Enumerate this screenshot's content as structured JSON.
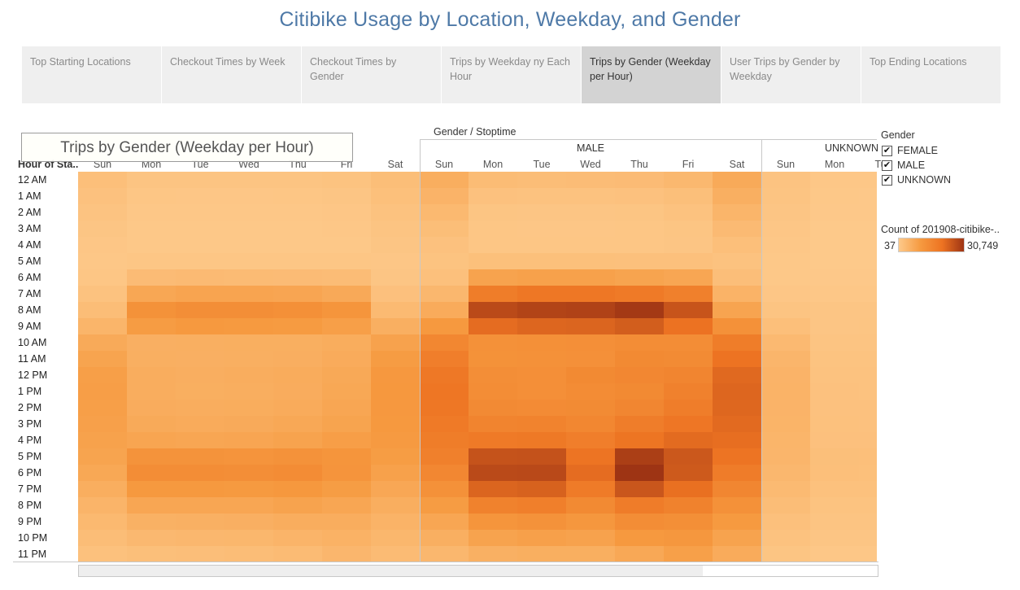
{
  "title": "Citibike Usage by Location, Weekday, and Gender",
  "tabs": [
    {
      "label": "Top Starting Locations",
      "active": false
    },
    {
      "label": "Checkout Times by Week",
      "active": false
    },
    {
      "label": "Checkout Times by Gender",
      "active": false
    },
    {
      "label": "Trips by Weekday ny Each Hour",
      "active": false
    },
    {
      "label": "Trips by Gender (Weekday per Hour)",
      "active": true
    },
    {
      "label": "User Trips by Gender by Weekday",
      "active": false
    },
    {
      "label": "Top Ending Locations",
      "active": false
    }
  ],
  "overlay_title": "Trips by Gender (Weekday per Hour)",
  "column_header": "Gender / Stoptime",
  "row_header": "Hour of Sta..",
  "gender_headers": [
    "",
    "MALE",
    "UNKNOWN"
  ],
  "days": [
    "Sun",
    "Mon",
    "Tue",
    "Wed",
    "Thu",
    "Fri",
    "Sat"
  ],
  "visible_unknown_days": [
    "Sun",
    "Mon",
    "Tue"
  ],
  "hours": [
    "12 AM",
    "1 AM",
    "2 AM",
    "3 AM",
    "4 AM",
    "5 AM",
    "6 AM",
    "7 AM",
    "8 AM",
    "9 AM",
    "10 AM",
    "11 AM",
    "12 PM",
    "1 PM",
    "2 PM",
    "3 PM",
    "4 PM",
    "5 PM",
    "6 PM",
    "7 PM",
    "8 PM",
    "9 PM",
    "10 PM",
    "11 PM"
  ],
  "legend": {
    "title": "Gender",
    "items": [
      {
        "label": "FEMALE",
        "checked": true
      },
      {
        "label": "MALE",
        "checked": true
      },
      {
        "label": "UNKNOWN",
        "checked": true
      }
    ],
    "checkmark": "✔",
    "color_title": "Count of 201908-citibike-..",
    "min_label": "37",
    "max_label": "30,749",
    "color_low": "#fdc98a",
    "color_high": "#9e3414"
  },
  "chart_data": {
    "type": "heatmap",
    "title": "Trips by Gender (Weekday per Hour)",
    "xlabel": "Gender / Stoptime",
    "ylabel": "Hour of Sta..",
    "value_range": [
      37,
      30749
    ],
    "series": [
      {
        "name": "FEMALE",
        "days": [
          "Sun",
          "Mon",
          "Tue",
          "Wed",
          "Thu",
          "Fri",
          "Sat"
        ],
        "values": [
          [
            2200,
            1200,
            1100,
            1100,
            1200,
            1400,
            2500
          ],
          [
            1700,
            700,
            600,
            600,
            700,
            900,
            2100
          ],
          [
            1300,
            400,
            400,
            400,
            400,
            600,
            1600
          ],
          [
            900,
            300,
            300,
            300,
            300,
            400,
            1200
          ],
          [
            600,
            300,
            300,
            300,
            300,
            300,
            800
          ],
          [
            500,
            700,
            700,
            700,
            700,
            700,
            600
          ],
          [
            700,
            3000,
            3200,
            3100,
            3000,
            2800,
            900
          ],
          [
            1500,
            7500,
            8000,
            8000,
            7800,
            7000,
            1900
          ],
          [
            2700,
            12500,
            13300,
            13500,
            13000,
            11500,
            3400
          ],
          [
            4500,
            9800,
            10500,
            10400,
            10100,
            9200,
            5700
          ],
          [
            6800,
            5600,
            5700,
            5800,
            5800,
            6200,
            8500
          ],
          [
            8200,
            5700,
            5600,
            5700,
            5900,
            6600,
            9800
          ],
          [
            9100,
            6100,
            5900,
            6100,
            6400,
            7100,
            10700
          ],
          [
            9300,
            6100,
            5800,
            6000,
            6300,
            7300,
            10800
          ],
          [
            9200,
            6300,
            6100,
            6200,
            6600,
            7600,
            10700
          ],
          [
            8900,
            6800,
            6600,
            6700,
            7200,
            8200,
            10500
          ],
          [
            8600,
            7900,
            7700,
            7800,
            8400,
            9300,
            10200
          ],
          [
            8200,
            12000,
            12000,
            11800,
            12400,
            11500,
            9700
          ],
          [
            7300,
            13800,
            13800,
            13300,
            13900,
            11800,
            8800
          ],
          [
            6000,
            10500,
            10600,
            10300,
            10800,
            9700,
            7400
          ],
          [
            4600,
            7600,
            7700,
            7600,
            8300,
            7600,
            6000
          ],
          [
            3600,
            5300,
            5500,
            5600,
            6100,
            6100,
            4900
          ],
          [
            2700,
            3700,
            3900,
            4000,
            4600,
            5100,
            4000
          ],
          [
            1800,
            2300,
            2400,
            2600,
            3100,
            4100,
            3100
          ]
        ]
      },
      {
        "name": "MALE",
        "days": [
          "Sun",
          "Mon",
          "Tue",
          "Wed",
          "Thu",
          "Fri",
          "Sat"
        ],
        "values": [
          [
            6000,
            2900,
            2700,
            2800,
            3000,
            3800,
            6800
          ],
          [
            4800,
            1700,
            1500,
            1500,
            1700,
            2300,
            5700
          ],
          [
            3600,
            1000,
            900,
            900,
            1000,
            1500,
            4400
          ],
          [
            2500,
            700,
            600,
            600,
            700,
            1000,
            3200
          ],
          [
            1700,
            700,
            700,
            700,
            700,
            800,
            2200
          ],
          [
            1400,
            2100,
            2100,
            2100,
            2000,
            2000,
            1600
          ],
          [
            2000,
            8300,
            8700,
            8700,
            8200,
            7700,
            2400
          ],
          [
            3900,
            18000,
            19400,
            19500,
            18700,
            17200,
            4900
          ],
          [
            6600,
            27100,
            28200,
            28400,
            30000,
            25500,
            8100
          ],
          [
            10500,
            21600,
            22600,
            22800,
            24000,
            20700,
            12600
          ],
          [
            15300,
            12600,
            12900,
            13100,
            13600,
            13800,
            18000
          ],
          [
            17500,
            12500,
            12600,
            12800,
            14600,
            14300,
            20500
          ],
          [
            19200,
            13400,
            13100,
            14600,
            15200,
            15800,
            22200
          ],
          [
            19700,
            13600,
            13100,
            13900,
            14600,
            16900,
            22600
          ],
          [
            19400,
            14400,
            14100,
            14300,
            15500,
            17900,
            22400
          ],
          [
            18800,
            16100,
            16400,
            15300,
            17900,
            19600,
            22000
          ],
          [
            18000,
            18800,
            19000,
            17600,
            20100,
            21800,
            21300
          ],
          [
            17100,
            25700,
            25800,
            20300,
            29000,
            24900,
            20300
          ],
          [
            15200,
            27100,
            27300,
            21600,
            30749,
            24600,
            18200
          ],
          [
            12600,
            22800,
            23300,
            18500,
            25200,
            21000,
            15500
          ],
          [
            9800,
            16600,
            17300,
            14600,
            18200,
            16600,
            12600
          ],
          [
            7600,
            11700,
            12400,
            11000,
            13600,
            13200,
            10300
          ],
          [
            5700,
            8400,
            8900,
            8500,
            10500,
            11100,
            8400
          ],
          [
            3900,
            5400,
            5800,
            5800,
            7200,
            9000,
            6600
          ]
        ]
      },
      {
        "name": "UNKNOWN",
        "days": [
          "Sun",
          "Mon",
          "Tue"
        ],
        "values": [
          [
            1300,
            400,
            400
          ],
          [
            1100,
            300,
            200
          ],
          [
            900,
            200,
            200
          ],
          [
            600,
            100,
            100
          ],
          [
            400,
            100,
            100
          ],
          [
            300,
            100,
            100
          ],
          [
            300,
            200,
            200
          ],
          [
            600,
            500,
            500
          ],
          [
            1200,
            900,
            900
          ],
          [
            2200,
            900,
            1000
          ],
          [
            3500,
            1200,
            1200
          ],
          [
            4300,
            1400,
            1400
          ],
          [
            4800,
            1600,
            1600
          ],
          [
            4900,
            1700,
            1600
          ],
          [
            4800,
            1700,
            1700
          ],
          [
            4700,
            1800,
            1700
          ],
          [
            4500,
            1900,
            1900
          ],
          [
            4300,
            2300,
            2200
          ],
          [
            3900,
            2200,
            2100
          ],
          [
            3300,
            1800,
            1800
          ],
          [
            2600,
            1400,
            1400
          ],
          [
            2000,
            1100,
            1100
          ],
          [
            1500,
            800,
            800
          ],
          [
            1000,
            500,
            500
          ]
        ]
      }
    ]
  }
}
